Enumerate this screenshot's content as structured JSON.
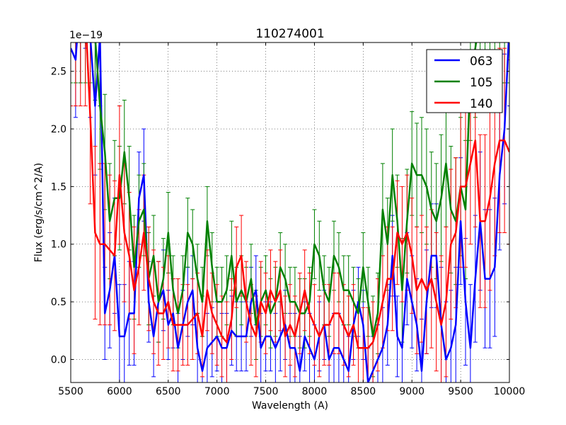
{
  "chart_data": {
    "type": "line",
    "title": "110274001",
    "xlabel": "Wavelength (A)",
    "ylabel": "Flux (erg/s/cm^2/A)",
    "y_offset_text": "1e−19",
    "xlim": [
      5500,
      10000
    ],
    "ylim": [
      -0.2,
      2.75
    ],
    "x_ticks": [
      5500,
      6000,
      6500,
      7000,
      7500,
      8000,
      8500,
      9000,
      9500,
      10000
    ],
    "x_tick_labels": [
      "5500",
      "6000",
      "6500",
      "7000",
      "7500",
      "8000",
      "8500",
      "9000",
      "9500",
      "10000"
    ],
    "y_ticks": [
      0.0,
      0.5,
      1.0,
      1.5,
      2.0,
      2.5
    ],
    "y_tick_labels": [
      "0.0",
      "0.5",
      "1.0",
      "1.5",
      "2.0",
      "2.5"
    ],
    "grid": true,
    "legend_position": "top-right",
    "series": [
      {
        "name": "063",
        "color": "#0000ff",
        "x": [
          5500,
          5550,
          5600,
          5650,
          5700,
          5750,
          5800,
          5850,
          5900,
          5950,
          6000,
          6050,
          6100,
          6150,
          6200,
          6250,
          6300,
          6350,
          6400,
          6450,
          6500,
          6550,
          6600,
          6650,
          6700,
          6750,
          6800,
          6850,
          6900,
          6950,
          7000,
          7050,
          7100,
          7150,
          7200,
          7250,
          7300,
          7350,
          7400,
          7450,
          7500,
          7550,
          7600,
          7650,
          7700,
          7750,
          7800,
          7850,
          7900,
          7950,
          8000,
          8050,
          8100,
          8150,
          8200,
          8250,
          8300,
          8350,
          8400,
          8450,
          8500,
          8550,
          8600,
          8650,
          8700,
          8750,
          8800,
          8850,
          8900,
          8950,
          9000,
          9050,
          9100,
          9150,
          9200,
          9250,
          9300,
          9350,
          9400,
          9450,
          9500,
          9550,
          9600,
          9650,
          9700,
          9750,
          9800,
          9850,
          9900,
          9950,
          10000
        ],
        "y": [
          2.7,
          2.6,
          3.2,
          3.5,
          2.8,
          2.2,
          2.8,
          0.4,
          0.6,
          0.9,
          0.2,
          0.2,
          0.4,
          0.4,
          1.4,
          1.6,
          0.5,
          0.2,
          0.5,
          0.6,
          0.3,
          0.4,
          0.1,
          0.3,
          0.5,
          0.6,
          0.1,
          -0.1,
          0.1,
          0.15,
          0.2,
          0.1,
          0.1,
          0.25,
          0.2,
          0.2,
          0.2,
          0.5,
          0.6,
          0.1,
          0.2,
          0.2,
          0.1,
          0.2,
          0.3,
          0.1,
          0.1,
          -0.1,
          0.2,
          0.1,
          0.0,
          0.2,
          0.3,
          0.0,
          0.1,
          0.1,
          0.0,
          -0.1,
          0.3,
          0.5,
          0.3,
          -0.2,
          -0.1,
          0.0,
          0.1,
          0.3,
          0.9,
          0.2,
          0.1,
          0.7,
          0.5,
          0.3,
          -0.1,
          0.5,
          0.9,
          0.9,
          0.3,
          0.0,
          0.1,
          0.3,
          1.2,
          0.5,
          0.1,
          0.7,
          1.2,
          0.7,
          0.7,
          0.8,
          1.6,
          2.0,
          2.9
        ],
        "err": [
          0.5,
          0.5,
          0.8,
          0.8,
          0.7,
          0.6,
          0.6,
          0.4,
          0.5,
          0.5,
          0.45,
          0.45,
          0.45,
          0.45,
          0.4,
          0.4,
          0.35,
          0.35,
          0.35,
          0.35,
          0.3,
          0.3,
          0.3,
          0.3,
          0.3,
          0.3,
          0.3,
          0.3,
          0.3,
          0.3,
          0.3,
          0.3,
          0.3,
          0.3,
          0.3,
          0.3,
          0.3,
          0.3,
          0.3,
          0.3,
          0.3,
          0.3,
          0.3,
          0.3,
          0.3,
          0.3,
          0.3,
          0.3,
          0.3,
          0.3,
          0.3,
          0.3,
          0.3,
          0.3,
          0.3,
          0.3,
          0.3,
          0.3,
          0.3,
          0.3,
          0.3,
          0.3,
          0.3,
          0.3,
          0.35,
          0.35,
          0.35,
          0.35,
          0.4,
          0.4,
          0.4,
          0.4,
          0.45,
          0.45,
          0.45,
          0.45,
          0.5,
          0.5,
          0.5,
          0.5,
          0.55,
          0.55,
          0.55,
          0.55,
          0.6,
          0.6,
          0.6,
          0.6,
          0.65,
          0.65,
          0.7
        ]
      },
      {
        "name": "105",
        "color": "#008000",
        "x": [
          5500,
          5550,
          5600,
          5650,
          5700,
          5750,
          5800,
          5850,
          5900,
          5950,
          6000,
          6050,
          6100,
          6150,
          6200,
          6250,
          6300,
          6350,
          6400,
          6450,
          6500,
          6550,
          6600,
          6650,
          6700,
          6750,
          6800,
          6850,
          6900,
          6950,
          7000,
          7050,
          7100,
          7150,
          7200,
          7250,
          7300,
          7350,
          7400,
          7450,
          7500,
          7550,
          7600,
          7650,
          7700,
          7750,
          7800,
          7850,
          7900,
          7950,
          8000,
          8050,
          8100,
          8150,
          8200,
          8250,
          8300,
          8350,
          8400,
          8450,
          8500,
          8550,
          8600,
          8650,
          8700,
          8750,
          8800,
          8850,
          8900,
          8950,
          9000,
          9050,
          9100,
          9150,
          9200,
          9250,
          9300,
          9350,
          9400,
          9450,
          9500,
          9550,
          9600,
          9650,
          9700,
          9750,
          9800,
          9850,
          9900,
          9950,
          10000
        ],
        "y": [
          3.0,
          3.0,
          3.0,
          3.0,
          3.0,
          2.8,
          2.2,
          1.8,
          1.2,
          1.4,
          1.4,
          1.8,
          1.4,
          0.8,
          1.2,
          1.3,
          0.7,
          0.9,
          0.5,
          0.7,
          1.1,
          0.6,
          0.4,
          0.6,
          1.1,
          1.0,
          0.7,
          0.5,
          1.2,
          0.8,
          0.5,
          0.5,
          0.6,
          0.9,
          0.5,
          0.6,
          0.5,
          0.7,
          0.3,
          0.5,
          0.6,
          0.4,
          0.5,
          0.8,
          0.7,
          0.5,
          0.5,
          0.4,
          0.4,
          0.5,
          1.0,
          0.9,
          0.6,
          0.5,
          0.9,
          0.8,
          0.6,
          0.6,
          0.5,
          0.4,
          0.8,
          0.5,
          0.2,
          0.4,
          1.3,
          1.0,
          1.6,
          1.2,
          0.6,
          1.2,
          1.7,
          1.6,
          1.6,
          1.5,
          1.3,
          1.2,
          1.4,
          1.7,
          1.3,
          1.2,
          1.5,
          1.3,
          2.5,
          2.7,
          3.0,
          3.0,
          3.0,
          3.0,
          3.0,
          3.0,
          3.0
        ],
        "err": [
          0.6,
          0.6,
          0.6,
          0.6,
          0.6,
          0.55,
          0.55,
          0.5,
          0.5,
          0.5,
          0.45,
          0.45,
          0.45,
          0.45,
          0.4,
          0.4,
          0.4,
          0.35,
          0.35,
          0.35,
          0.35,
          0.3,
          0.3,
          0.3,
          0.3,
          0.3,
          0.3,
          0.3,
          0.3,
          0.3,
          0.3,
          0.3,
          0.3,
          0.3,
          0.3,
          0.3,
          0.3,
          0.3,
          0.3,
          0.3,
          0.3,
          0.3,
          0.3,
          0.3,
          0.3,
          0.3,
          0.3,
          0.3,
          0.3,
          0.3,
          0.3,
          0.3,
          0.3,
          0.3,
          0.3,
          0.3,
          0.3,
          0.3,
          0.3,
          0.3,
          0.3,
          0.3,
          0.35,
          0.35,
          0.4,
          0.4,
          0.4,
          0.4,
          0.45,
          0.45,
          0.45,
          0.45,
          0.5,
          0.5,
          0.5,
          0.5,
          0.55,
          0.55,
          0.55,
          0.55,
          0.6,
          0.6,
          0.6,
          0.6,
          0.6,
          0.6,
          0.6,
          0.6,
          0.6,
          0.6,
          0.6
        ]
      },
      {
        "name": "140",
        "color": "#ff0000",
        "x": [
          5500,
          5550,
          5600,
          5650,
          5700,
          5750,
          5800,
          5850,
          5900,
          5950,
          6000,
          6050,
          6100,
          6150,
          6200,
          6250,
          6300,
          6350,
          6400,
          6450,
          6500,
          6550,
          6600,
          6650,
          6700,
          6750,
          6800,
          6850,
          6900,
          6950,
          7000,
          7050,
          7100,
          7150,
          7200,
          7250,
          7300,
          7350,
          7400,
          7450,
          7500,
          7550,
          7600,
          7650,
          7700,
          7750,
          7800,
          7850,
          7900,
          7950,
          8000,
          8050,
          8100,
          8150,
          8200,
          8250,
          8300,
          8350,
          8400,
          8450,
          8500,
          8550,
          8600,
          8650,
          8700,
          8750,
          8800,
          8850,
          8900,
          8950,
          9000,
          9050,
          9100,
          9150,
          9200,
          9250,
          9300,
          9350,
          9400,
          9450,
          9500,
          9550,
          9600,
          9650,
          9700,
          9750,
          9800,
          9850,
          9900,
          9950,
          10000
        ],
        "y": [
          3.0,
          3.0,
          3.0,
          3.0,
          2.1,
          1.1,
          1.0,
          1.0,
          0.95,
          0.9,
          1.6,
          1.1,
          0.9,
          0.6,
          0.8,
          1.1,
          0.7,
          0.5,
          0.4,
          0.4,
          0.5,
          0.3,
          0.3,
          0.3,
          0.3,
          0.35,
          0.4,
          0.2,
          0.6,
          0.4,
          0.3,
          0.2,
          0.15,
          0.35,
          0.8,
          0.9,
          0.5,
          0.3,
          0.2,
          0.5,
          0.4,
          0.6,
          0.5,
          0.6,
          0.2,
          0.3,
          0.2,
          0.4,
          0.6,
          0.4,
          0.3,
          0.2,
          0.3,
          0.3,
          0.4,
          0.4,
          0.3,
          0.2,
          0.3,
          0.1,
          0.1,
          0.1,
          0.15,
          0.3,
          0.5,
          0.7,
          0.7,
          1.1,
          1.0,
          1.1,
          0.9,
          0.6,
          0.7,
          0.6,
          0.7,
          0.5,
          0.3,
          0.5,
          1.0,
          1.1,
          1.5,
          1.5,
          1.7,
          1.9,
          1.2,
          1.2,
          1.4,
          1.7,
          1.9,
          1.9,
          1.8
        ],
        "err": [
          0.8,
          0.8,
          0.8,
          0.8,
          0.75,
          0.75,
          0.7,
          0.7,
          0.65,
          0.65,
          0.6,
          0.6,
          0.55,
          0.55,
          0.5,
          0.5,
          0.45,
          0.45,
          0.45,
          0.4,
          0.4,
          0.4,
          0.4,
          0.35,
          0.35,
          0.35,
          0.35,
          0.35,
          0.35,
          0.35,
          0.35,
          0.35,
          0.35,
          0.35,
          0.35,
          0.35,
          0.35,
          0.35,
          0.35,
          0.35,
          0.35,
          0.35,
          0.35,
          0.35,
          0.35,
          0.35,
          0.35,
          0.35,
          0.35,
          0.35,
          0.35,
          0.35,
          0.35,
          0.35,
          0.35,
          0.35,
          0.35,
          0.35,
          0.35,
          0.35,
          0.35,
          0.35,
          0.35,
          0.4,
          0.4,
          0.45,
          0.45,
          0.45,
          0.5,
          0.5,
          0.5,
          0.55,
          0.55,
          0.55,
          0.6,
          0.6,
          0.6,
          0.65,
          0.65,
          0.65,
          0.7,
          0.7,
          0.7,
          0.75,
          0.75,
          0.75,
          0.8,
          0.8,
          0.8,
          0.8,
          0.8
        ]
      }
    ]
  }
}
